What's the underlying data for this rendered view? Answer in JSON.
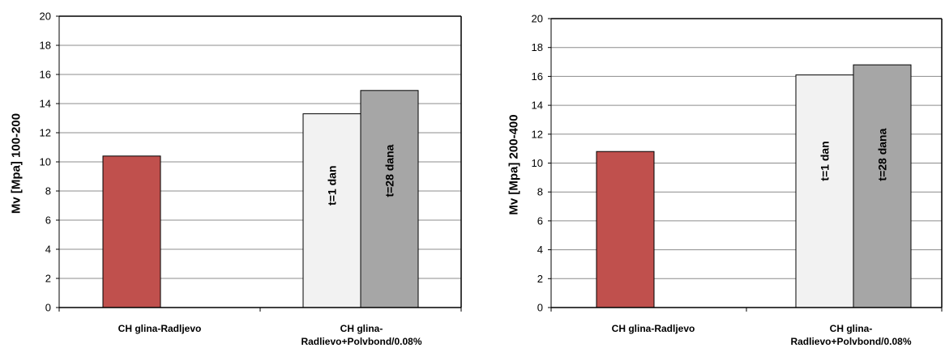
{
  "chart_data": [
    {
      "type": "bar",
      "ylabel": "Mv [Mpa] 100-200",
      "ylim": [
        0,
        20
      ],
      "yticks": [
        0,
        2,
        4,
        6,
        8,
        10,
        12,
        14,
        16,
        18,
        20
      ],
      "grid": true,
      "categories": [
        {
          "lines": [
            "CH glina-Radljevo"
          ]
        },
        {
          "lines": [
            "CH glina-",
            "Radlievo+Polvbond/0.08%"
          ]
        }
      ],
      "bars": [
        {
          "category": 0,
          "value": 10.4,
          "color": "#c0504d",
          "label": ""
        },
        {
          "category": 1,
          "value": 13.3,
          "color": "#f2f2f2",
          "label": "t=1 dan"
        },
        {
          "category": 1,
          "value": 14.9,
          "color": "#a6a6a6",
          "label": "t=28 dana"
        }
      ]
    },
    {
      "type": "bar",
      "ylabel": "Mv [Mpa] 200-400",
      "ylim": [
        0,
        20
      ],
      "yticks": [
        0,
        2,
        4,
        6,
        8,
        10,
        12,
        14,
        16,
        18,
        20
      ],
      "grid": true,
      "categories": [
        {
          "lines": [
            "CH glina-Radljevo"
          ]
        },
        {
          "lines": [
            "CH glina-",
            "Radlievo+Polvbond/0.08%"
          ]
        }
      ],
      "bars": [
        {
          "category": 0,
          "value": 10.8,
          "color": "#c0504d",
          "label": ""
        },
        {
          "category": 1,
          "value": 16.1,
          "color": "#f2f2f2",
          "label": "t=1 dan"
        },
        {
          "category": 1,
          "value": 16.8,
          "color": "#a6a6a6",
          "label": "t=28 dana"
        }
      ]
    }
  ]
}
